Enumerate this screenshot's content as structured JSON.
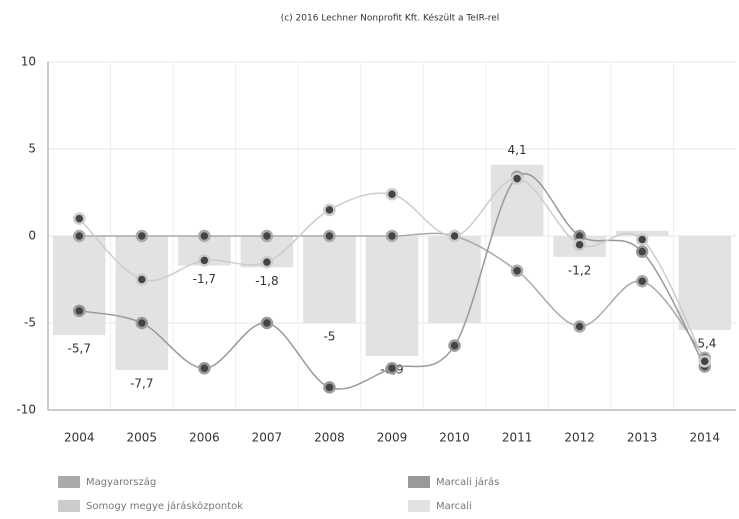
{
  "chart_data": {
    "type": "bar-line",
    "title": "(c) 2016 Lechner Nonprofit Kft. Készült a TeIR-rel",
    "categories": [
      "2004",
      "2005",
      "2006",
      "2007",
      "2008",
      "2009",
      "2010",
      "2011",
      "2012",
      "2013",
      "2014"
    ],
    "ylim": [
      -10,
      10
    ],
    "yticks": [
      -10,
      -5,
      0,
      5,
      10
    ],
    "grid": true,
    "series": [
      {
        "name": "Magyarország",
        "color": "#aaaaaa",
        "kind": "line",
        "values": [
          0,
          0,
          0,
          0,
          0,
          0,
          0,
          -2,
          -5.2,
          -2.6,
          -7
        ]
      },
      {
        "name": "Marcali járás",
        "color": "#999999",
        "kind": "line",
        "values": [
          -4.3,
          -5,
          -7.6,
          -5,
          -8.7,
          -7.6,
          -6.3,
          3.4,
          0,
          -0.9,
          -7.5
        ]
      },
      {
        "name": "Somogy megye járásközpontok",
        "color": "#cccccc",
        "kind": "line",
        "values": [
          1,
          -2.5,
          -1.4,
          -1.5,
          1.5,
          2.4,
          0,
          3.3,
          -0.5,
          -0.2,
          -7.2
        ]
      },
      {
        "name": "Marcali",
        "color": "#e2e2e2",
        "kind": "bar",
        "values": [
          -5.7,
          -7.7,
          -1.7,
          -1.8,
          -5,
          -6.9,
          -5,
          4.1,
          -1.2,
          0.3,
          -5.4
        ],
        "value_labels": [
          "-5,7",
          "-7,7",
          "-1,7",
          "-1,8",
          "-5",
          "-6,9",
          null,
          "4,1",
          "-1,2",
          null,
          "-5,4"
        ]
      }
    ]
  }
}
